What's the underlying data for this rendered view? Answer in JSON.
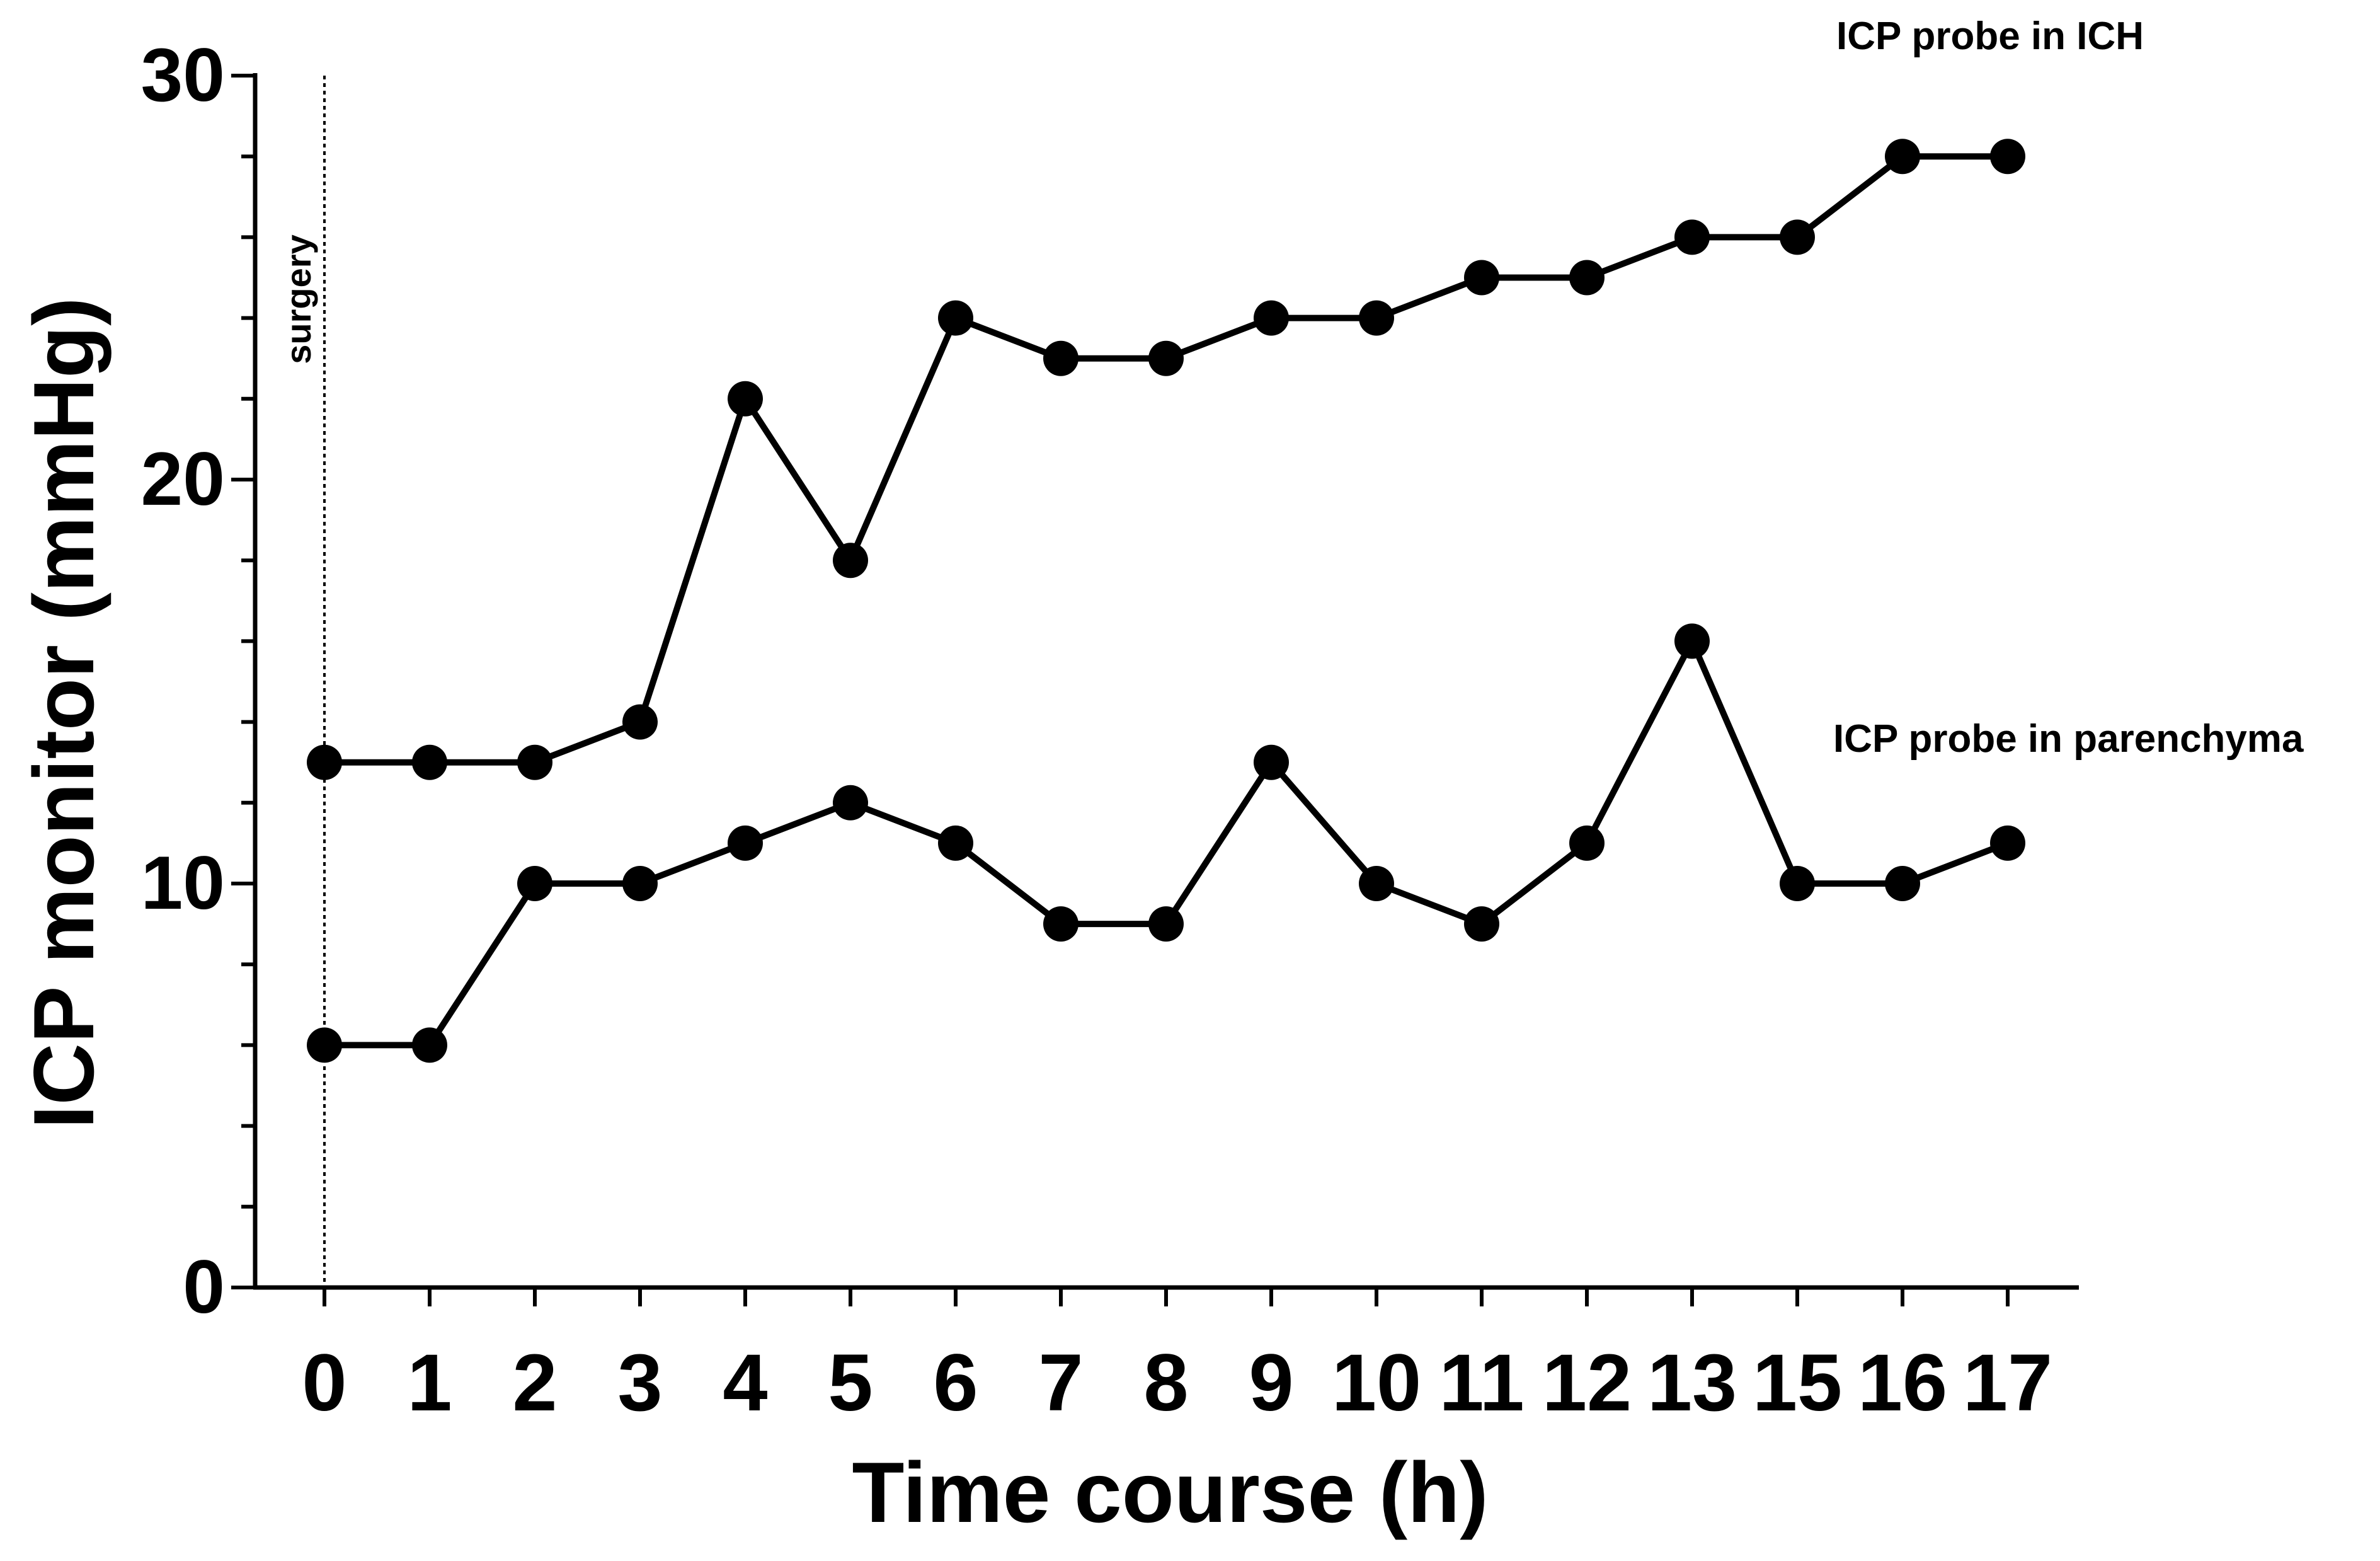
{
  "chart_data": {
    "type": "line",
    "categories": [
      "0",
      "1",
      "2",
      "3",
      "4",
      "5",
      "6",
      "7",
      "8",
      "9",
      "10",
      "11",
      "12",
      "13",
      "15",
      "16",
      "17"
    ],
    "series": [
      {
        "name": "ICP probe in ICH",
        "values": [
          13,
          13,
          13,
          14,
          22,
          18,
          24,
          23,
          23,
          24,
          24,
          25,
          25,
          26,
          26,
          28,
          28
        ]
      },
      {
        "name": "ICP probe in parenchyma",
        "values": [
          6,
          6,
          10,
          10,
          11,
          12,
          11,
          9,
          9,
          13,
          10,
          9,
          11,
          16,
          10,
          10,
          11
        ]
      }
    ],
    "xlabel": "Time course (h)",
    "ylabel": "ICP monitor (mmHg)",
    "ylim": [
      0,
      30
    ],
    "yticks": [
      "0",
      "10",
      "20",
      "30"
    ],
    "minor_ytick_step": 2,
    "reference_line": {
      "x": "0",
      "label": "surgery"
    },
    "grid": false,
    "marker": "filled-circle",
    "color": "#000000"
  }
}
